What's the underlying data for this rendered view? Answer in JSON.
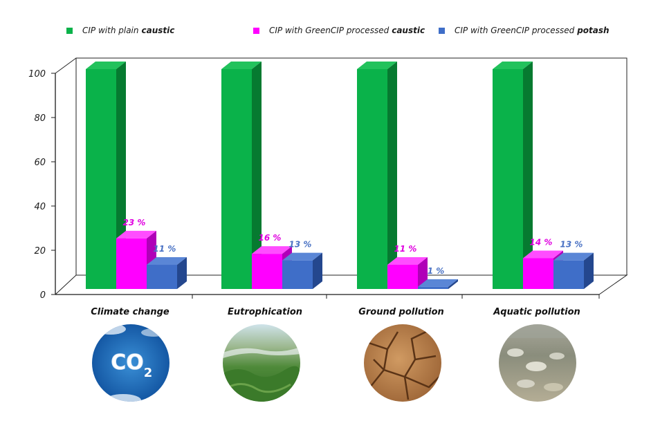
{
  "colors": {
    "green": "#0ab24a",
    "green_top": "#22c25c",
    "green_side": "#067a30",
    "magenta": "#ff00ff",
    "magenta_top": "#ff4dff",
    "magenta_side": "#b000b8",
    "blue": "#3f6ec8",
    "blue_top": "#5a86d6",
    "blue_side": "#24478e",
    "label_magenta": "#e000e0",
    "label_blue": "#4a72c4",
    "axis": "#1a1a1a"
  },
  "legend": [
    {
      "text": "CIP with plain",
      "bold": "caustic",
      "color": "#0ab24a"
    },
    {
      "text": "CIP with GreenCIP processed",
      "bold": "caustic",
      "color": "#ff00ff"
    },
    {
      "text": "CIP with GreenCIP processed",
      "bold": "potash",
      "color": "#3f6ec8"
    }
  ],
  "icons": [
    {
      "name": "co2-sky-image",
      "text": "CO",
      "sub": "2"
    },
    {
      "name": "green-landscape-image"
    },
    {
      "name": "cracked-soil-image"
    },
    {
      "name": "polluted-water-image"
    }
  ],
  "chart_data": {
    "type": "bar",
    "style": "3d-clustered",
    "categories": [
      "Climate change",
      "Eutrophication",
      "Ground pollution",
      "Aquatic pollution"
    ],
    "series": [
      {
        "name": "CIP with plain caustic",
        "values": [
          100,
          100,
          100,
          100
        ]
      },
      {
        "name": "CIP with GreenCIP processed caustic",
        "values": [
          23,
          16,
          11,
          14
        ],
        "data_labels": [
          "23 %",
          "16 %",
          "11 %",
          "14 %"
        ]
      },
      {
        "name": "CIP with GreenCIP processed potash",
        "values": [
          11,
          13,
          1,
          13
        ],
        "data_labels": [
          "11 %",
          "13 %",
          "1 %",
          "13 %"
        ]
      }
    ],
    "yticks": [
      "0",
      "20",
      "40",
      "60",
      "80",
      "100"
    ],
    "ylim": [
      0,
      100
    ],
    "title": "",
    "xlabel": "",
    "ylabel": "",
    "legend_position": "top"
  }
}
